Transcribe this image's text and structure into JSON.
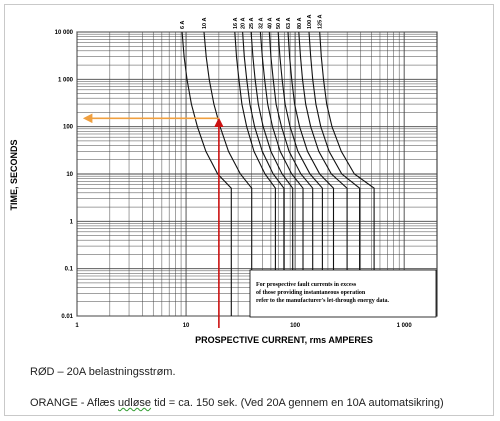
{
  "chart_data": {
    "type": "line",
    "xlabel": "PROSPECTIVE CURRENT, rms AMPERES",
    "ylabel": "TIME, SECONDS",
    "xscale": "log",
    "yscale": "log",
    "xlim": [
      1,
      2000
    ],
    "ylim": [
      0.01,
      10000
    ],
    "grid": true,
    "x_ticks": [
      {
        "value": 1,
        "label": "1"
      },
      {
        "value": 10,
        "label": "10"
      },
      {
        "value": 100,
        "label": "100"
      },
      {
        "value": 1000,
        "label": "1 000"
      }
    ],
    "y_ticks": [
      {
        "value": 10000,
        "label": "10 000"
      },
      {
        "value": 1000,
        "label": "1 000"
      },
      {
        "value": 100,
        "label": "100"
      },
      {
        "value": 10,
        "label": "10"
      },
      {
        "value": 1,
        "label": "1"
      },
      {
        "value": 0.1,
        "label": "0.1"
      },
      {
        "value": 0.01,
        "label": "0.01"
      }
    ],
    "series": [
      {
        "name": "6 A",
        "points": [
          [
            9.2,
            10000
          ],
          [
            9.6,
            3000
          ],
          [
            10.2,
            1000
          ],
          [
            11.2,
            300
          ],
          [
            12.7,
            100
          ],
          [
            15.2,
            30
          ],
          [
            19.5,
            10
          ],
          [
            26,
            5
          ]
        ]
      },
      {
        "name": "10 A",
        "points": [
          [
            14.6,
            10000
          ],
          [
            15.3,
            3000
          ],
          [
            16.3,
            1000
          ],
          [
            18,
            300
          ],
          [
            20.5,
            100
          ],
          [
            24.5,
            30
          ],
          [
            31.5,
            10
          ],
          [
            40,
            5
          ]
        ]
      },
      {
        "name": "16 A",
        "points": [
          [
            28,
            10000
          ],
          [
            29,
            3000
          ],
          [
            30.5,
            1000
          ],
          [
            32.5,
            300
          ],
          [
            36,
            100
          ],
          [
            42,
            30
          ],
          [
            53,
            10
          ],
          [
            66,
            5
          ]
        ]
      },
      {
        "name": "20 A",
        "points": [
          [
            33,
            10000
          ],
          [
            34.2,
            3000
          ],
          [
            36,
            1000
          ],
          [
            38.5,
            300
          ],
          [
            42.5,
            100
          ],
          [
            50,
            30
          ],
          [
            63,
            10
          ],
          [
            79,
            5
          ]
        ]
      },
      {
        "name": "25 A",
        "points": [
          [
            39.5,
            10000
          ],
          [
            41,
            3000
          ],
          [
            43,
            1000
          ],
          [
            46,
            300
          ],
          [
            51,
            100
          ],
          [
            60,
            30
          ],
          [
            76,
            10
          ],
          [
            95,
            5
          ]
        ]
      },
      {
        "name": "32 A",
        "points": [
          [
            48,
            10000
          ],
          [
            50,
            3000
          ],
          [
            52.5,
            1000
          ],
          [
            56,
            300
          ],
          [
            62,
            100
          ],
          [
            73,
            30
          ],
          [
            93,
            10
          ],
          [
            118,
            5
          ]
        ]
      },
      {
        "name": "40 A",
        "points": [
          [
            58,
            10000
          ],
          [
            60,
            3000
          ],
          [
            63,
            1000
          ],
          [
            67,
            300
          ],
          [
            75,
            100
          ],
          [
            88,
            30
          ],
          [
            113,
            10
          ],
          [
            145,
            5
          ]
        ]
      },
      {
        "name": "50 A",
        "points": [
          [
            70,
            10000
          ],
          [
            72.5,
            3000
          ],
          [
            76,
            1000
          ],
          [
            81,
            300
          ],
          [
            90,
            100
          ],
          [
            106,
            30
          ],
          [
            137,
            10
          ],
          [
            178,
            5
          ]
        ]
      },
      {
        "name": "63 A",
        "points": [
          [
            86,
            10000
          ],
          [
            89,
            3000
          ],
          [
            93,
            1000
          ],
          [
            99,
            300
          ],
          [
            110,
            100
          ],
          [
            130,
            30
          ],
          [
            168,
            10
          ],
          [
            225,
            5
          ]
        ]
      },
      {
        "name": "80 A",
        "points": [
          [
            108,
            10000
          ],
          [
            112,
            3000
          ],
          [
            117,
            1000
          ],
          [
            125,
            300
          ],
          [
            139,
            100
          ],
          [
            165,
            30
          ],
          [
            215,
            10
          ],
          [
            300,
            5
          ]
        ]
      },
      {
        "name": "100 A",
        "points": [
          [
            134,
            10000
          ],
          [
            139,
            3000
          ],
          [
            145,
            1000
          ],
          [
            155,
            300
          ],
          [
            172,
            100
          ],
          [
            205,
            30
          ],
          [
            268,
            10
          ],
          [
            390,
            5
          ]
        ]
      },
      {
        "name": "125 A",
        "points": [
          [
            168,
            10000
          ],
          [
            174,
            3000
          ],
          [
            182,
            1000
          ],
          [
            195,
            300
          ],
          [
            218,
            100
          ],
          [
            265,
            30
          ],
          [
            350,
            10
          ],
          [
            530,
            5
          ]
        ]
      }
    ],
    "red_marker": {
      "x": 20,
      "y_from": 0.01,
      "y_to": 150
    },
    "orange_marker": {
      "y": 150,
      "x_from": 20,
      "x_to": 1.15
    },
    "annotation": "For prospective fault currents in excess\nof those providing instantaneous operation\nrefer to the manufacturer's let-through energy data.",
    "colors": {
      "red": "#cc1111",
      "orange": "#f0a040",
      "curve": "#111111",
      "grid": "#444444"
    }
  },
  "captions": {
    "line1": "RØD – 20A belastningsstrøm.",
    "line2_before": "ORANGE - Aflæs ",
    "line2_squiggle": "udløse",
    "line2_after": " tid = ca. 150 sek. (Ved 20A gennem en 10A automatsikring)"
  }
}
